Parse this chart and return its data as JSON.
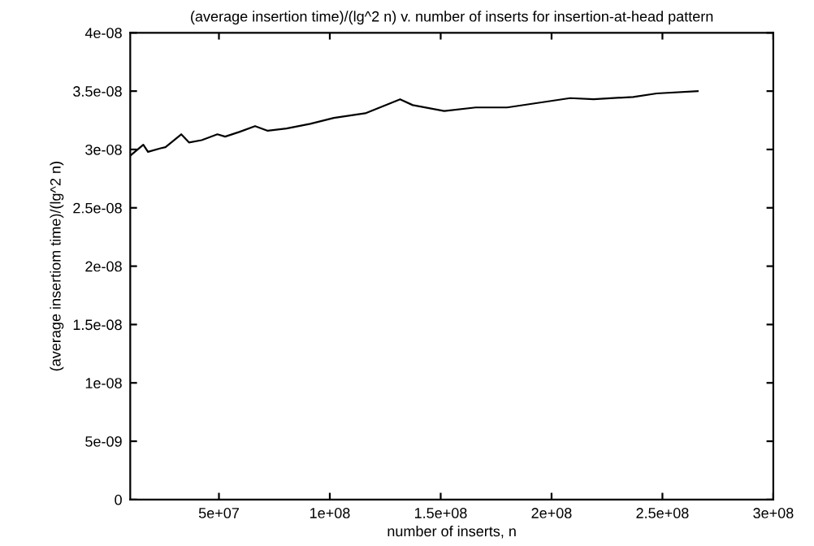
{
  "chart_data": {
    "type": "line",
    "title": "(average insertion time)/(lg^2 n) v. number of inserts for insertion-at-head pattern",
    "xlabel": "number of inserts, n",
    "ylabel": "(average insertiom time)/(lg^2 n)",
    "x": [
      10200000.0,
      15900000.0,
      18000000.0,
      23700000.0,
      25900000.0,
      33000000.0,
      36500000.0,
      42200000.0,
      49300000.0,
      52800000.0,
      59200000.0,
      66300000.0,
      72000000.0,
      80500000.0,
      91200000.0,
      101800000.0,
      116000000.0,
      131700000.0,
      137400000.0,
      151600000.0,
      165800000.0,
      180000000.0,
      194200000.0,
      208400000.0,
      219000000.0,
      236800000.0,
      247400000.0,
      265900000.0
    ],
    "series": [
      {
        "color": "#000000",
        "values": [
          2.95e-08,
          3.04e-08,
          2.98e-08,
          3.01e-08,
          3.02e-08,
          3.13e-08,
          3.06e-08,
          3.08e-08,
          3.13e-08,
          3.11e-08,
          3.15e-08,
          3.2e-08,
          3.16e-08,
          3.18e-08,
          3.22e-08,
          3.27e-08,
          3.31e-08,
          3.43e-08,
          3.38e-08,
          3.33e-08,
          3.36e-08,
          3.36e-08,
          3.4e-08,
          3.44e-08,
          3.43e-08,
          3.45e-08,
          3.48e-08,
          3.5e-08
        ]
      }
    ],
    "xlim": [
      10000000.0,
      300000000.0
    ],
    "ylim": [
      0,
      4e-08
    ],
    "xticks": [
      {
        "value": 50000000.0,
        "label": "5e+07"
      },
      {
        "value": 100000000.0,
        "label": "1e+08"
      },
      {
        "value": 150000000.0,
        "label": "1.5e+08"
      },
      {
        "value": 200000000.0,
        "label": "2e+08"
      },
      {
        "value": 250000000.0,
        "label": "2.5e+08"
      },
      {
        "value": 300000000.0,
        "label": "3e+08"
      }
    ],
    "yticks": [
      {
        "value": 0,
        "label": "0"
      },
      {
        "value": 5e-09,
        "label": "5e-09"
      },
      {
        "value": 1e-08,
        "label": "1e-08"
      },
      {
        "value": 1.5e-08,
        "label": "1.5e-08"
      },
      {
        "value": 2e-08,
        "label": "2e-08"
      },
      {
        "value": 2.5e-08,
        "label": "2.5e-08"
      },
      {
        "value": 3e-08,
        "label": "3e-08"
      },
      {
        "value": 3.5e-08,
        "label": "3.5e-08"
      },
      {
        "value": 4e-08,
        "label": "4e-08"
      }
    ],
    "grid": false,
    "marker": "none",
    "line_style": "solid"
  }
}
